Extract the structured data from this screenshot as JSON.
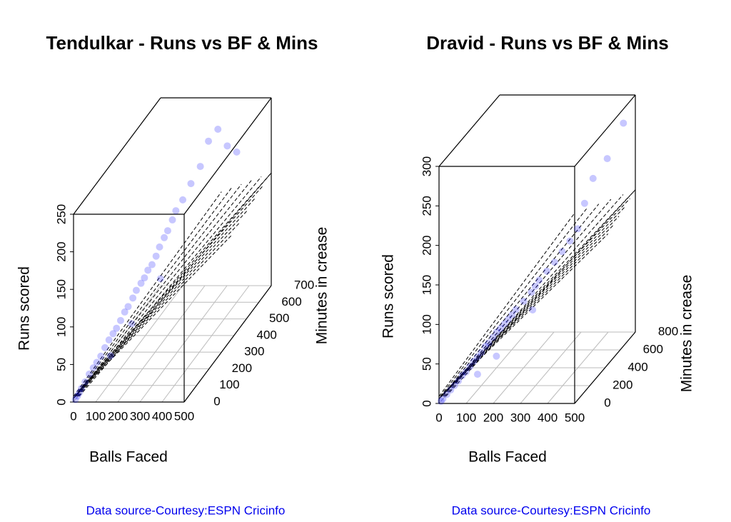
{
  "chart_data": [
    {
      "type": "scatter3d",
      "title": "Tendulkar - Runs  vs BF & Mins",
      "x_label": "Balls Faced",
      "y_label": "Runs scored",
      "z_label": "Minutes in crease",
      "source": "Data source-Courtesy:ESPN Cricinfo",
      "color": "#0000ff",
      "xlim": [
        0,
        500
      ],
      "xticks": [
        0,
        100,
        200,
        300,
        400,
        500
      ],
      "ylim": [
        0,
        250
      ],
      "yticks": [
        0,
        50,
        100,
        150,
        200,
        250
      ],
      "zlim": [
        0,
        700
      ],
      "zticks": [
        0,
        100,
        200,
        300,
        400,
        500,
        600,
        700
      ],
      "x": [
        5,
        10,
        15,
        20,
        30,
        40,
        50,
        60,
        70,
        80,
        90,
        100,
        110,
        120,
        130,
        140,
        150,
        160,
        170,
        180,
        190,
        200,
        210,
        220,
        230,
        240,
        250,
        260,
        280,
        300,
        320,
        340,
        360,
        380,
        400,
        230,
        150,
        100
      ],
      "z": [
        6,
        14,
        20,
        28,
        40,
        55,
        70,
        80,
        95,
        110,
        125,
        140,
        150,
        165,
        180,
        190,
        210,
        220,
        240,
        250,
        260,
        275,
        290,
        300,
        320,
        330,
        350,
        360,
        380,
        410,
        450,
        480,
        520,
        560,
        600,
        290,
        200,
        120
      ],
      "y": [
        2,
        5,
        8,
        12,
        18,
        25,
        30,
        35,
        40,
        48,
        55,
        60,
        65,
        72,
        80,
        85,
        92,
        100,
        105,
        110,
        118,
        122,
        130,
        140,
        148,
        155,
        165,
        175,
        185,
        200,
        214,
        241,
        248,
        217,
        200,
        100,
        60,
        35
      ]
    },
    {
      "type": "scatter3d",
      "title": "Dravid - Runs  vs BF & Mins",
      "x_label": "Balls Faced",
      "y_label": "Runs scored",
      "z_label": "Minutes in crease",
      "source": "Data source-Courtesy:ESPN Cricinfo",
      "color": "#0000ff",
      "xlim": [
        0,
        500
      ],
      "xticks": [
        0,
        100,
        200,
        300,
        400,
        500
      ],
      "ylim": [
        0,
        300
      ],
      "yticks": [
        0,
        50,
        100,
        150,
        200,
        250,
        300
      ],
      "zlim": [
        0,
        800
      ],
      "zticks": [
        0,
        200,
        400,
        600,
        800
      ],
      "x": [
        5,
        10,
        20,
        30,
        40,
        50,
        60,
        70,
        80,
        90,
        100,
        110,
        120,
        130,
        140,
        150,
        160,
        170,
        180,
        190,
        200,
        220,
        240,
        250,
        260,
        280,
        300,
        320,
        340,
        360,
        380,
        400,
        430,
        470,
        150,
        100,
        250
      ],
      "z": [
        8,
        15,
        30,
        45,
        60,
        75,
        90,
        105,
        120,
        135,
        150,
        165,
        180,
        190,
        210,
        225,
        240,
        255,
        270,
        285,
        300,
        330,
        360,
        375,
        390,
        420,
        450,
        480,
        510,
        540,
        560,
        600,
        680,
        750,
        220,
        150,
        340
      ],
      "y": [
        2,
        4,
        8,
        12,
        16,
        20,
        25,
        28,
        33,
        38,
        42,
        46,
        52,
        55,
        60,
        65,
        68,
        72,
        76,
        80,
        85,
        92,
        100,
        106,
        112,
        120,
        128,
        138,
        148,
        160,
        190,
        217,
        233,
        270,
        35,
        20,
        80
      ]
    }
  ]
}
